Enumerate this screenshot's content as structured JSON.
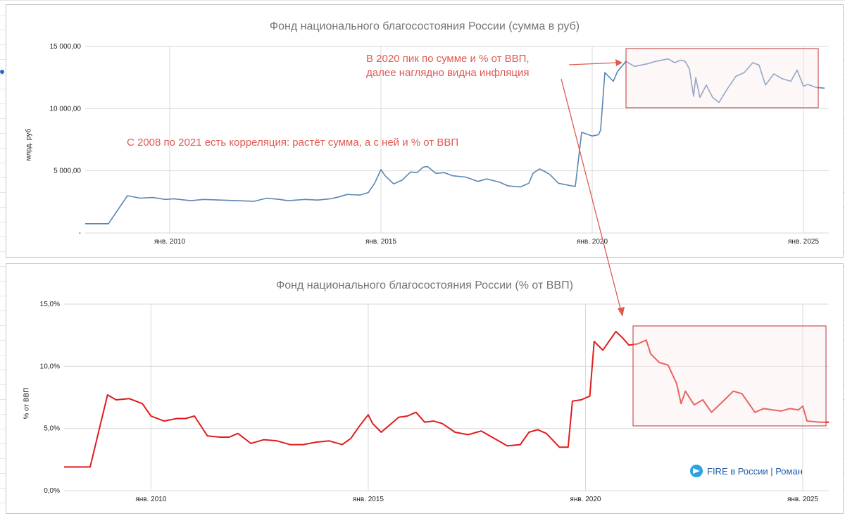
{
  "brand": {
    "label": "FIRE в России | Роман",
    "icon": "telegram-icon"
  },
  "annotations": {
    "peak_line1": "В 2020 пик по сумме и % от ВВП,",
    "peak_line2": "далее наглядно видна инфляция",
    "correlation": "С 2008 по 2021 есть корреляция: растёт сумма, а с ней и % от ВВП"
  },
  "colors": {
    "series1": "#5b85b5",
    "series2": "#e01c1c",
    "annotation": "#e05a52",
    "highlight_fill": "#fde8e8",
    "highlight_border": "#c23030"
  },
  "chart_data": [
    {
      "type": "line",
      "title": "Фонд национального благосостояния России (сумма в руб)",
      "ylabel": "млрд. руб",
      "ylim": [
        0,
        15000
      ],
      "yticks": [
        0,
        5000,
        10000,
        15000
      ],
      "ytick_labels": [
        "-",
        "5 000,00",
        "10 000,00",
        "15 000,00"
      ],
      "xlim": [
        2008.0,
        2025.6
      ],
      "xticks": [
        2010,
        2015,
        2020,
        2025
      ],
      "xtick_labels": [
        "янв. 2010",
        "янв. 2015",
        "янв. 2020",
        "янв. 2025"
      ],
      "grid": true,
      "series": [
        {
          "x": [
            2008.0,
            2008.55,
            2009.0,
            2009.3,
            2009.6,
            2009.9,
            2010.1,
            2010.5,
            2010.8,
            2011.2,
            2011.6,
            2012.0,
            2012.3,
            2012.6,
            2012.8,
            2013.2,
            2013.5,
            2013.8,
            2014.0,
            2014.2,
            2014.5,
            2014.7,
            2014.85,
            2015.0,
            2015.1,
            2015.3,
            2015.5,
            2015.7,
            2015.85,
            2016.0,
            2016.1,
            2016.3,
            2016.5,
            2016.7,
            2017.0,
            2017.3,
            2017.5,
            2017.8,
            2018.0,
            2018.3,
            2018.5,
            2018.6,
            2018.75,
            2018.9,
            2019.0,
            2019.2,
            2019.5,
            2019.6,
            2019.75,
            2020.0,
            2020.15,
            2020.2,
            2020.3,
            2020.5,
            2020.6,
            2020.8,
            2021.0,
            2021.3,
            2021.5,
            2021.8,
            2021.95,
            2022.1,
            2022.2,
            2022.3,
            2022.4,
            2022.45,
            2022.55,
            2022.7,
            2022.85,
            2023.0,
            2023.2,
            2023.4,
            2023.6,
            2023.8,
            2023.95,
            2024.1,
            2024.3,
            2024.5,
            2024.7,
            2024.85,
            2025.0,
            2025.1,
            2025.3,
            2025.5
          ],
          "y": [
            750,
            750,
            3000,
            2800,
            2850,
            2700,
            2750,
            2600,
            2700,
            2650,
            2600,
            2550,
            2800,
            2700,
            2600,
            2700,
            2650,
            2750,
            2900,
            3100,
            3050,
            3250,
            4000,
            5100,
            4600,
            3950,
            4250,
            4900,
            4850,
            5300,
            5350,
            4800,
            4850,
            4600,
            4500,
            4150,
            4350,
            4100,
            3800,
            3700,
            4000,
            4800,
            5150,
            4900,
            4700,
            4000,
            3800,
            3750,
            8100,
            7800,
            7900,
            8300,
            12900,
            12200,
            13000,
            13800,
            13400,
            13600,
            13800,
            14000,
            13700,
            13900,
            13800,
            13200,
            11000,
            12500,
            10900,
            11900,
            10900,
            10500,
            11600,
            12600,
            12900,
            13700,
            13500,
            11900,
            12800,
            12400,
            12200,
            13100,
            11800,
            11950,
            11700,
            11650
          ]
        }
      ]
    },
    {
      "type": "line",
      "title": "Фонд национального благосостояния России (% от ВВП)",
      "ylabel": "% от ВВП",
      "ylim": [
        0,
        15
      ],
      "yticks": [
        0,
        5,
        10,
        15
      ],
      "ytick_labels": [
        "0,0%",
        "5,0%",
        "10,0%",
        "15,0%"
      ],
      "xlim": [
        2008.0,
        2025.6
      ],
      "xticks": [
        2010,
        2015,
        2020,
        2025
      ],
      "xtick_labels": [
        "янв. 2010",
        "янв. 2015",
        "янв. 2020",
        "янв. 2025"
      ],
      "grid": true,
      "series": [
        {
          "x": [
            2008.0,
            2008.6,
            2009.0,
            2009.2,
            2009.5,
            2009.8,
            2010.0,
            2010.3,
            2010.6,
            2010.8,
            2011.0,
            2011.3,
            2011.6,
            2011.8,
            2012.0,
            2012.3,
            2012.6,
            2012.9,
            2013.2,
            2013.5,
            2013.8,
            2014.1,
            2014.4,
            2014.6,
            2014.8,
            2015.0,
            2015.1,
            2015.3,
            2015.5,
            2015.7,
            2015.9,
            2016.1,
            2016.3,
            2016.5,
            2016.7,
            2017.0,
            2017.3,
            2017.6,
            2017.9,
            2018.2,
            2018.5,
            2018.7,
            2018.9,
            2019.1,
            2019.4,
            2019.6,
            2019.7,
            2019.9,
            2020.1,
            2020.2,
            2020.4,
            2020.6,
            2020.7,
            2020.85,
            2021.0,
            2021.2,
            2021.4,
            2021.5,
            2021.7,
            2021.9,
            2022.1,
            2022.2,
            2022.3,
            2022.5,
            2022.7,
            2022.9,
            2023.2,
            2023.4,
            2023.6,
            2023.9,
            2024.1,
            2024.3,
            2024.5,
            2024.7,
            2024.9,
            2025.0,
            2025.1,
            2025.4,
            2025.6
          ],
          "y": [
            1.9,
            1.9,
            7.7,
            7.3,
            7.4,
            7.0,
            6.0,
            5.6,
            5.8,
            5.8,
            6.0,
            4.4,
            4.3,
            4.3,
            4.6,
            3.8,
            4.1,
            4.0,
            3.7,
            3.7,
            3.9,
            4.0,
            3.7,
            4.2,
            5.2,
            6.1,
            5.4,
            4.7,
            5.3,
            5.9,
            6.0,
            6.3,
            5.5,
            5.6,
            5.4,
            4.7,
            4.5,
            4.8,
            4.2,
            3.6,
            3.7,
            4.7,
            4.9,
            4.6,
            3.5,
            3.5,
            7.2,
            7.3,
            7.6,
            12.0,
            11.3,
            12.3,
            12.8,
            12.3,
            11.7,
            11.8,
            12.1,
            11.0,
            10.3,
            10.1,
            8.6,
            7.0,
            8.0,
            6.9,
            7.3,
            6.3,
            7.3,
            8.0,
            7.8,
            6.3,
            6.6,
            6.5,
            6.4,
            6.6,
            6.5,
            6.8,
            5.6,
            5.5,
            5.5
          ]
        }
      ]
    }
  ]
}
